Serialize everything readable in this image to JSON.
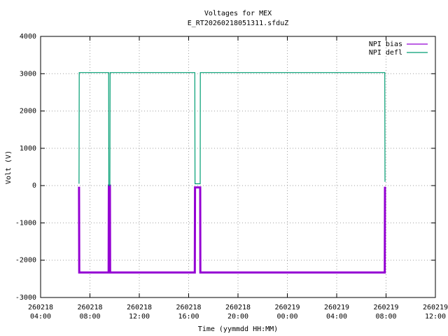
{
  "chart_data": {
    "type": "line",
    "title": [
      "Voltages for MEX",
      "E_RT20260218051311.sfduZ"
    ],
    "x_label": "Time (yymmdd HH:MM)",
    "y_label": "Volt (V)",
    "x": [
      "260218 07:07",
      "260218 07:08",
      "260218 09:31",
      "260218 09:32",
      "260218 09:37",
      "260218 09:38",
      "260218 16:30",
      "260218 16:31",
      "260218 16:56",
      "260218 16:57",
      "260219 07:54",
      "260219 07:55"
    ],
    "series": [
      {
        "name": "NPI bias",
        "color": "#9400d3",
        "values": [
          -30,
          -2330,
          -2330,
          0,
          0,
          -2330,
          -2330,
          -50,
          -50,
          -2330,
          -2330,
          -30
        ]
      },
      {
        "name": "NPI defl",
        "color": "#009e73",
        "values": [
          50,
          3030,
          3030,
          0,
          0,
          3030,
          3030,
          50,
          50,
          3030,
          3030,
          100
        ]
      }
    ],
    "xlim": [
      "260218 04:00",
      "260219 12:00"
    ],
    "xticks": [
      {
        "value": "260218 04:00",
        "label": [
          "260218",
          "04:00"
        ]
      },
      {
        "value": "260218 08:00",
        "label": [
          "260218",
          "08:00"
        ]
      },
      {
        "value": "260218 12:00",
        "label": [
          "260218",
          "12:00"
        ]
      },
      {
        "value": "260218 16:00",
        "label": [
          "260218",
          "16:00"
        ]
      },
      {
        "value": "260218 20:00",
        "label": [
          "260218",
          "20:00"
        ]
      },
      {
        "value": "260219 00:00",
        "label": [
          "260219",
          "00:00"
        ]
      },
      {
        "value": "260219 04:00",
        "label": [
          "260219",
          "04:00"
        ]
      },
      {
        "value": "260219 08:00",
        "label": [
          "260219",
          "08:00"
        ]
      },
      {
        "value": "260219 12:00",
        "label": [
          "260219",
          "12:00"
        ]
      }
    ],
    "ylim": [
      -3000,
      4000
    ],
    "yticks": [
      -3000,
      -2000,
      -1000,
      0,
      1000,
      2000,
      3000,
      4000
    ],
    "grid": true,
    "legend": "top-right"
  }
}
